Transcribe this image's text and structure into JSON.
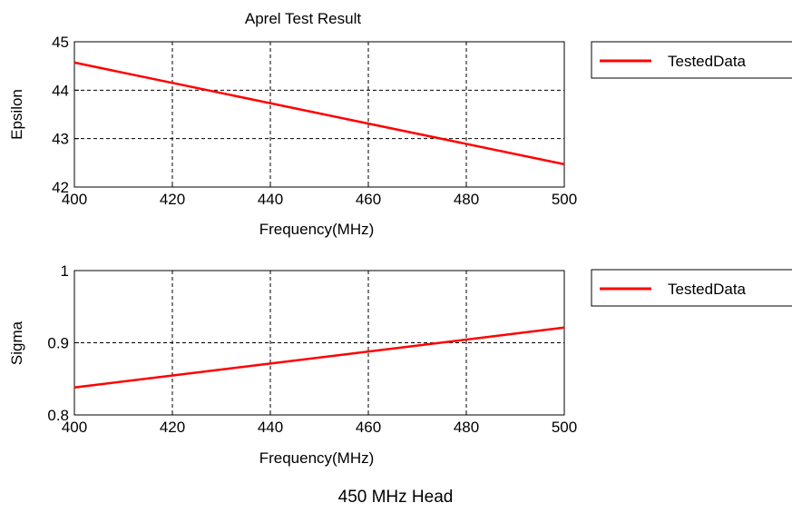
{
  "caption": "450 MHz Head",
  "colors": {
    "series": "#ff0000",
    "frame": "#000000",
    "background": "#ffffff"
  },
  "chart_data": [
    {
      "type": "line",
      "title": "Aprel Test Result",
      "xlabel": "Frequency(MHz)",
      "ylabel": "Epsilon",
      "xlim": [
        400,
        500
      ],
      "ylim": [
        42,
        45
      ],
      "xticks": [
        400,
        420,
        440,
        460,
        480,
        500
      ],
      "yticks": [
        42,
        43,
        44,
        45
      ],
      "x_tick_labels": [
        "400",
        "420",
        "440",
        "460",
        "480",
        "500"
      ],
      "y_tick_labels": [
        "42",
        "43",
        "44",
        "45"
      ],
      "grid": true,
      "legend_position": "right",
      "series": [
        {
          "name": "TestedData",
          "x": [
            400,
            500
          ],
          "y": [
            44.57,
            42.47
          ]
        }
      ]
    },
    {
      "type": "line",
      "title": "",
      "xlabel": "Frequency(MHz)",
      "ylabel": "Sigma",
      "xlim": [
        400,
        500
      ],
      "ylim": [
        0.8,
        1.0
      ],
      "xticks": [
        400,
        420,
        440,
        460,
        480,
        500
      ],
      "yticks": [
        0.8,
        0.9,
        1.0
      ],
      "x_tick_labels": [
        "400",
        "420",
        "440",
        "460",
        "480",
        "500"
      ],
      "y_tick_labels": [
        "0.8",
        "0.9",
        "1"
      ],
      "grid": true,
      "legend_position": "right",
      "series": [
        {
          "name": "TestedData",
          "x": [
            400,
            500
          ],
          "y": [
            0.838,
            0.921
          ]
        }
      ]
    }
  ]
}
